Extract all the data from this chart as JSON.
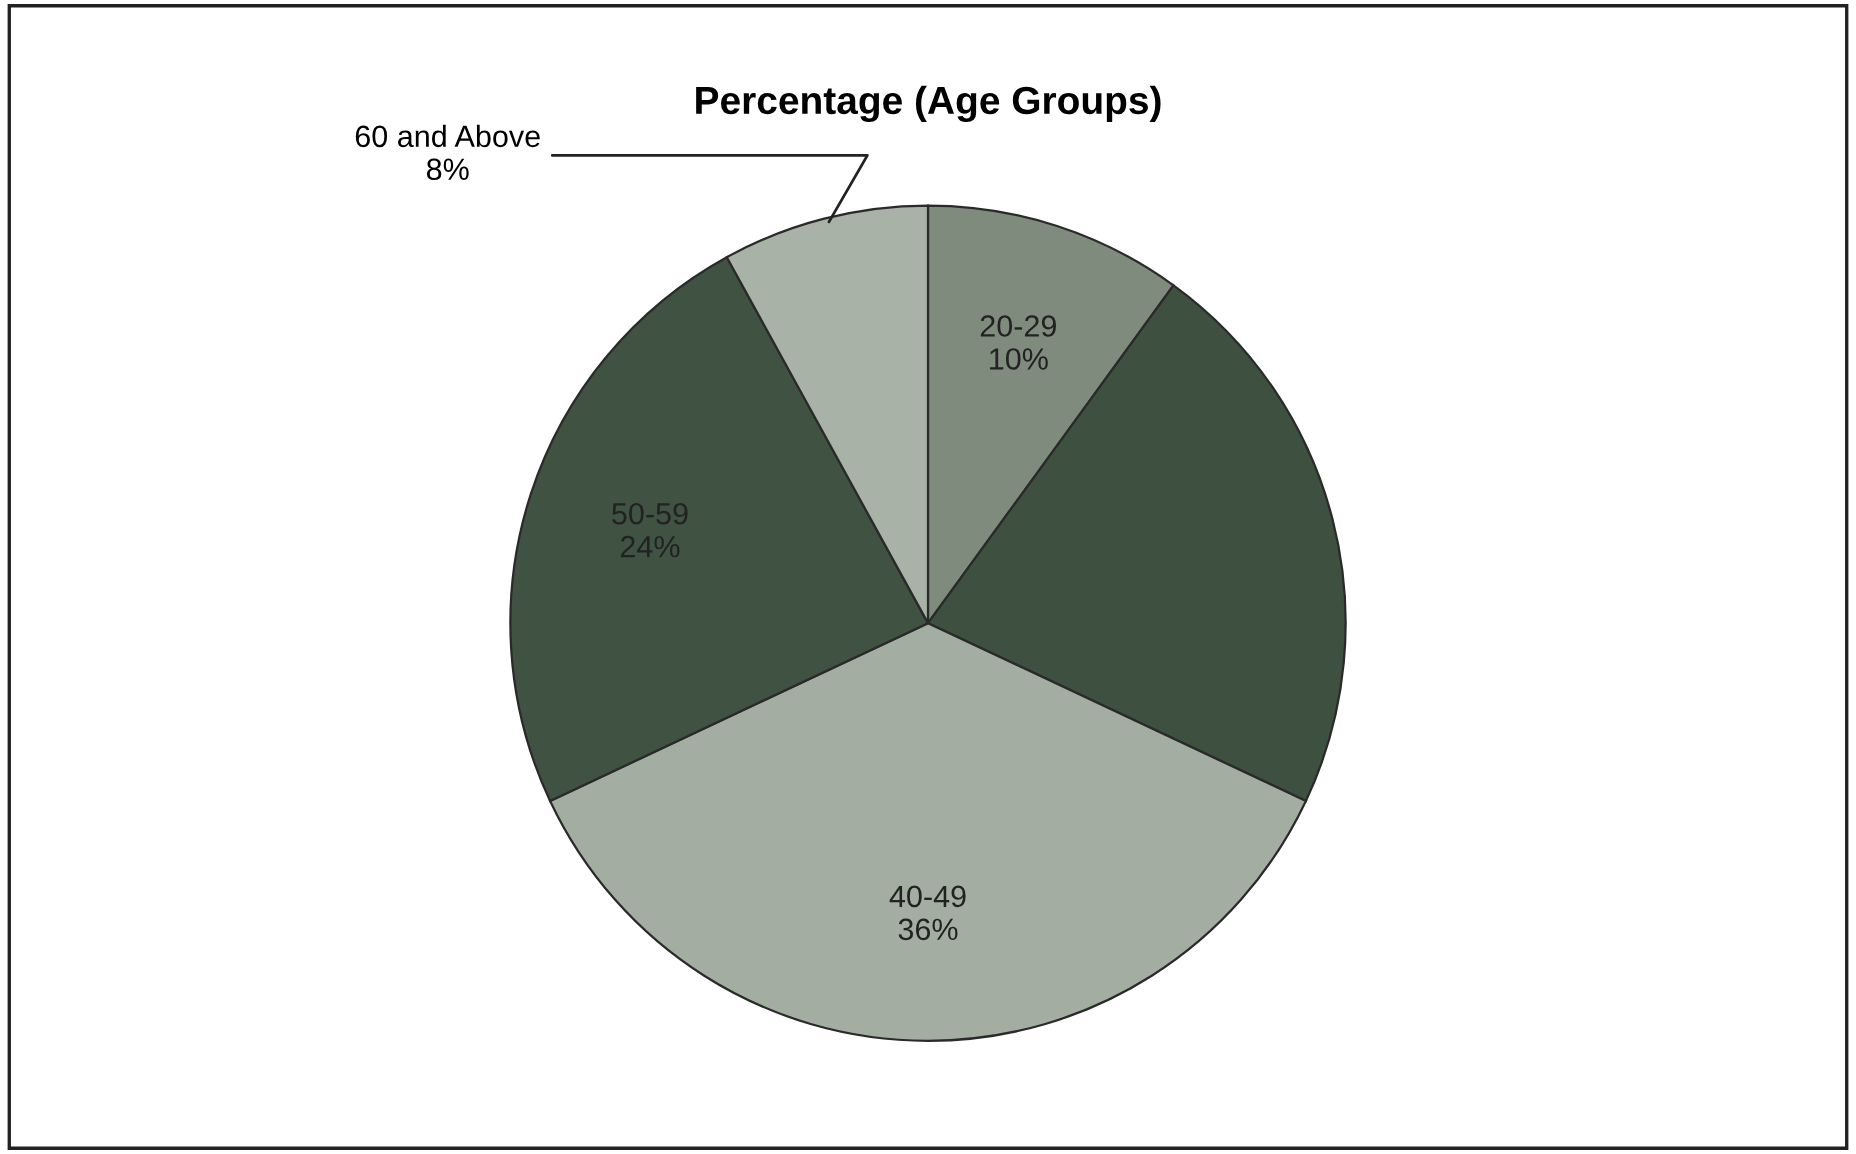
{
  "chart_data": {
    "type": "pie",
    "title": "Percentage (Age Groups)",
    "categories": [
      "20-29",
      null,
      "40-49",
      "50-59",
      "60 and Above"
    ],
    "values": [
      10,
      22,
      36,
      24,
      8
    ],
    "value_labels": [
      "10%",
      null,
      "36%",
      "24%",
      "8%"
    ],
    "colors": [
      "#7f8b7c",
      "#3e503f",
      "#a3ada1",
      "#405242",
      "#a9b2a7"
    ],
    "legend": false
  }
}
